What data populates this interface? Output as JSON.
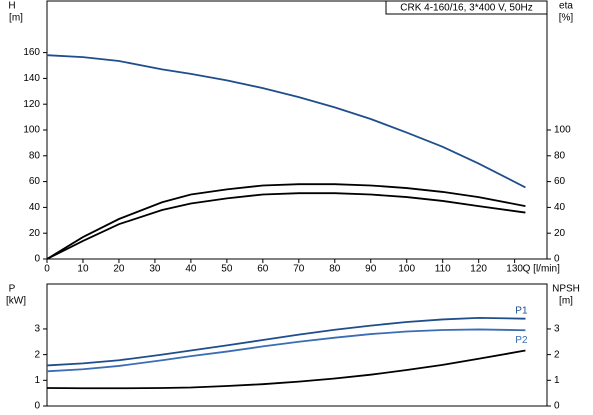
{
  "chart_data": [
    {
      "type": "line",
      "title": "CRK 4-160/16, 3*400 V, 50Hz",
      "ylabel": [
        "H",
        "[m]"
      ],
      "y2label": [
        "eta",
        "[%]"
      ],
      "xlabel": "Q [l/min]",
      "x": [
        0,
        10,
        20,
        32,
        40,
        50,
        60,
        70,
        80,
        90,
        100,
        110,
        120,
        133
      ],
      "xlim": [
        0,
        139
      ],
      "xticks": [
        0,
        10,
        20,
        30,
        40,
        50,
        60,
        70,
        80,
        90,
        100,
        110,
        120,
        130
      ],
      "ylim": [
        0,
        200
      ],
      "yticks": [
        0,
        20,
        40,
        60,
        80,
        100,
        120,
        140,
        160
      ],
      "y2lim": [
        0,
        200
      ],
      "y2ticks": [
        0,
        20,
        40,
        60,
        80,
        100
      ],
      "series": [
        {
          "color": "#1f4e8c",
          "values": [
            158,
            156.5,
            153.5,
            147,
            143.5,
            138.5,
            132.5,
            125.5,
            117.5,
            108.5,
            98,
            87,
            74,
            55.5
          ]
        },
        {
          "color": "#000000",
          "axis": "y2",
          "values": [
            0,
            17,
            31,
            44,
            50,
            54,
            57,
            58,
            58,
            57,
            55,
            52,
            48,
            41
          ]
        },
        {
          "color": "#000000",
          "axis": "y2",
          "values": [
            0,
            14,
            27,
            38,
            43,
            47,
            50,
            51,
            51,
            50,
            48,
            45,
            41,
            36
          ]
        }
      ]
    },
    {
      "type": "line",
      "ylabel": [
        "P",
        "[kW]"
      ],
      "y2label": [
        "NPSH",
        "[m]"
      ],
      "x": [
        0,
        10,
        20,
        32,
        40,
        50,
        60,
        70,
        80,
        90,
        100,
        110,
        120,
        133
      ],
      "xlim": [
        0,
        139
      ],
      "ylim": [
        0,
        4.75
      ],
      "yticks": [
        0,
        1,
        2,
        3
      ],
      "y2lim": [
        0,
        4.75
      ],
      "y2ticks": [
        0,
        1,
        2,
        3
      ],
      "series": [
        {
          "name": "P1",
          "color": "#1f4e8c",
          "values": [
            1.58,
            1.66,
            1.78,
            2.0,
            2.16,
            2.36,
            2.57,
            2.78,
            2.97,
            3.13,
            3.27,
            3.37,
            3.43,
            3.4
          ]
        },
        {
          "name": "P2",
          "color": "#3a6db5",
          "values": [
            1.35,
            1.43,
            1.56,
            1.78,
            1.94,
            2.12,
            2.32,
            2.5,
            2.66,
            2.8,
            2.9,
            2.96,
            2.98,
            2.95
          ]
        },
        {
          "color": "#000000",
          "axis": "y2",
          "values": [
            0.7,
            0.69,
            0.69,
            0.7,
            0.72,
            0.78,
            0.85,
            0.95,
            1.07,
            1.22,
            1.4,
            1.6,
            1.84,
            2.16
          ]
        }
      ]
    }
  ]
}
